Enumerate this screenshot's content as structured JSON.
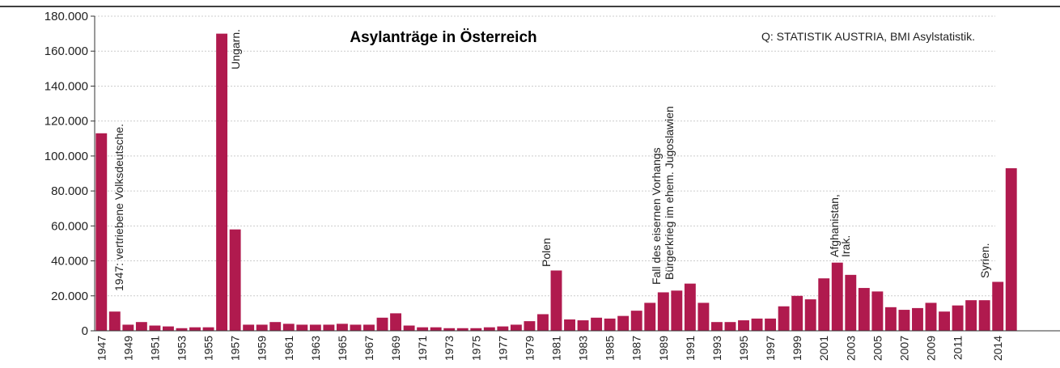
{
  "chart_data": {
    "type": "bar",
    "title": "Asylanträge in Österreich",
    "source": "Q: STATISTIK AUSTRIA, BMI Asylstatistik.",
    "annotations": [
      "1947: vertriebene Volksdeutsche.",
      "Ungarn.",
      "Polen",
      "Fall des eisernen Vorhangs",
      "Bürgerkrieg im ehem. Jugoslawien",
      "Afghanistan,",
      "Irak.",
      "Syrien."
    ],
    "categories": [
      "1947",
      null,
      "1949",
      null,
      "1951",
      null,
      "1953",
      null,
      "1955",
      null,
      "1957",
      null,
      "1959",
      null,
      "1961",
      null,
      "1963",
      null,
      "1965",
      null,
      "1967",
      null,
      "1969",
      null,
      "1971",
      null,
      "1973",
      null,
      "1975",
      null,
      "1977",
      null,
      "1979",
      null,
      "1981",
      null,
      "1983",
      null,
      "1985",
      null,
      "1987",
      null,
      "1989",
      null,
      "1991",
      null,
      "1993",
      null,
      "1995",
      null,
      "1997",
      null,
      "1999",
      null,
      "2001",
      null,
      "2003",
      null,
      "2005",
      null,
      "2007",
      null,
      "2009",
      null,
      "2011",
      null,
      null,
      "2014",
      null
    ],
    "values": [
      113000,
      11000,
      3500,
      5000,
      3000,
      2500,
      1500,
      2000,
      2000,
      170000,
      58000,
      3500,
      3500,
      5000,
      4000,
      3500,
      3500,
      3500,
      4000,
      3500,
      3500,
      7500,
      10000,
      3000,
      2000,
      2000,
      1500,
      1500,
      1500,
      2000,
      2500,
      3500,
      5500,
      9500,
      34500,
      6500,
      6000,
      7500,
      7000,
      8500,
      11500,
      16000,
      22000,
      23000,
      27000,
      16000,
      5000,
      5000,
      6000,
      7000,
      7000,
      14000,
      20000,
      18000,
      30000,
      39000,
      32000,
      24500,
      22500,
      13500,
      12000,
      13000,
      16000,
      11000,
      14500,
      17500,
      17500,
      28000,
      93000
    ],
    "color": "#b01a4e",
    "ylim": [
      0,
      180000
    ],
    "yticks": [
      0,
      {
        "value": 20000,
        "label": "20.000"
      },
      {
        "value": 40000,
        "label": "40.000"
      },
      {
        "value": 60000,
        "label": "60.000"
      },
      {
        "value": 80000,
        "label": "80.000"
      },
      {
        "value": 100000,
        "label": "100.000"
      },
      {
        "value": 120000,
        "label": "120.000"
      },
      {
        "value": 140000,
        "label": "140.000"
      },
      {
        "value": 160000,
        "label": "160.000"
      },
      {
        "value": 180000,
        "label": "180.000"
      }
    ],
    "grid": true
  }
}
